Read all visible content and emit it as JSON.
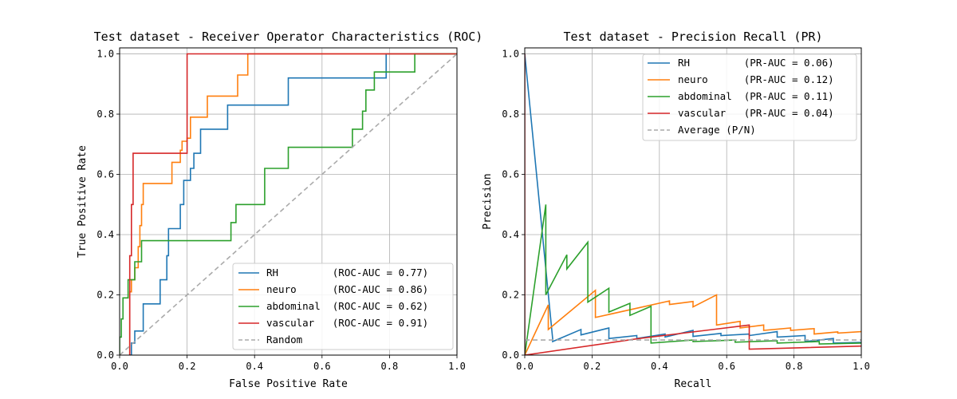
{
  "chart_data": [
    {
      "type": "line",
      "title": "Test dataset - Receiver Operator Characteristics (ROC)",
      "xlabel": "False Positive Rate",
      "ylabel": "True Positive Rate",
      "xlim": [
        0,
        1.0
      ],
      "ylim": [
        0,
        1.02
      ],
      "xticks": [
        "0.0",
        "0.2",
        "0.4",
        "0.6",
        "0.8",
        "1.0"
      ],
      "yticks": [
        "0.0",
        "0.2",
        "0.4",
        "0.6",
        "0.8",
        "1.0"
      ],
      "grid": true,
      "legend_position": "lower-right",
      "series": [
        {
          "name": "RH",
          "label": "RH         (ROC-AUC = 0.77)",
          "color": "#1f77b4",
          "x": [
            0.03,
            0.035,
            0.035,
            0.045,
            0.045,
            0.07,
            0.07,
            0.12,
            0.12,
            0.14,
            0.14,
            0.145,
            0.145,
            0.18,
            0.18,
            0.19,
            0.19,
            0.21,
            0.21,
            0.22,
            0.22,
            0.24,
            0.24,
            0.32,
            0.32,
            0.5,
            0.5,
            0.79,
            0.79,
            1.0
          ],
          "y": [
            0,
            0,
            0.04,
            0.04,
            0.08,
            0.08,
            0.17,
            0.17,
            0.25,
            0.25,
            0.33,
            0.33,
            0.42,
            0.42,
            0.5,
            0.5,
            0.58,
            0.58,
            0.62,
            0.62,
            0.67,
            0.67,
            0.75,
            0.75,
            0.83,
            0.83,
            0.92,
            0.92,
            1.0,
            1.0
          ]
        },
        {
          "name": "neuro",
          "label": "neuro      (ROC-AUC = 0.86)",
          "color": "#ff7f0e",
          "x": [
            0.03,
            0.03,
            0.035,
            0.035,
            0.045,
            0.045,
            0.055,
            0.055,
            0.06,
            0.06,
            0.065,
            0.065,
            0.07,
            0.07,
            0.155,
            0.155,
            0.18,
            0.18,
            0.185,
            0.185,
            0.2,
            0.2,
            0.21,
            0.21,
            0.22,
            0.22,
            0.26,
            0.26,
            0.32,
            0.32,
            0.35,
            0.35,
            0.37,
            0.37,
            0.38,
            0.38,
            1.0
          ],
          "y": [
            0,
            0.21,
            0.21,
            0.25,
            0.25,
            0.29,
            0.29,
            0.36,
            0.36,
            0.43,
            0.43,
            0.5,
            0.5,
            0.57,
            0.57,
            0.64,
            0.64,
            0.68,
            0.68,
            0.71,
            0.71,
            0.72,
            0.72,
            0.79,
            0.79,
            0.79,
            0.79,
            0.86,
            0.86,
            0.86,
            0.86,
            0.93,
            0.93,
            0.93,
            0.93,
            1.0,
            1.0
          ]
        },
        {
          "name": "abdominal",
          "label": "abdominal  (ROC-AUC = 0.62)",
          "color": "#2ca02c",
          "x": [
            0.0,
            0.0,
            0.005,
            0.005,
            0.01,
            0.01,
            0.025,
            0.025,
            0.045,
            0.045,
            0.055,
            0.055,
            0.065,
            0.065,
            0.07,
            0.07,
            0.33,
            0.33,
            0.345,
            0.345,
            0.42,
            0.42,
            0.43,
            0.43,
            0.5,
            0.5,
            0.69,
            0.69,
            0.72,
            0.72,
            0.73,
            0.73,
            0.74,
            0.74,
            0.755,
            0.755,
            0.8,
            0.8,
            0.875,
            0.875,
            1.0
          ],
          "y": [
            0,
            0.06,
            0.06,
            0.12,
            0.12,
            0.19,
            0.19,
            0.25,
            0.25,
            0.31,
            0.31,
            0.31,
            0.31,
            0.38,
            0.38,
            0.38,
            0.38,
            0.44,
            0.44,
            0.5,
            0.5,
            0.5,
            0.5,
            0.62,
            0.62,
            0.69,
            0.69,
            0.75,
            0.75,
            0.81,
            0.81,
            0.88,
            0.88,
            0.88,
            0.88,
            0.94,
            0.94,
            0.94,
            0.94,
            1.0,
            1.0
          ]
        },
        {
          "name": "vascular",
          "label": "vascular   (ROC-AUC = 0.91)",
          "color": "#d62728",
          "x": [
            0.03,
            0.03,
            0.035,
            0.035,
            0.04,
            0.04,
            0.2,
            0.2,
            1.0
          ],
          "y": [
            0,
            0.33,
            0.33,
            0.5,
            0.5,
            0.67,
            0.67,
            1.0,
            1.0
          ]
        },
        {
          "name": "Random",
          "label": "Random",
          "color": "#aaaaaa",
          "dashed": true,
          "x": [
            0,
            1
          ],
          "y": [
            0,
            1
          ]
        }
      ]
    },
    {
      "type": "line",
      "title": "Test dataset - Precision Recall (PR)",
      "xlabel": "Recall",
      "ylabel": "Precision",
      "xlim": [
        0,
        1.0
      ],
      "ylim": [
        0,
        1.02
      ],
      "xticks": [
        "0.0",
        "0.2",
        "0.4",
        "0.6",
        "0.8",
        "1.0"
      ],
      "yticks": [
        "0.0",
        "0.2",
        "0.4",
        "0.6",
        "0.8",
        "1.0"
      ],
      "grid": true,
      "legend_position": "top-right",
      "series": [
        {
          "name": "RH",
          "label": "RH         (PR-AUC = 0.06)",
          "color": "#1f77b4",
          "x": [
            0.0,
            0.083,
            0.083,
            0.167,
            0.167,
            0.25,
            0.25,
            0.333,
            0.333,
            0.417,
            0.417,
            0.5,
            0.5,
            0.583,
            0.583,
            0.667,
            0.667,
            0.75,
            0.75,
            0.833,
            0.833,
            0.917,
            0.917,
            1.0
          ],
          "y": [
            1.0,
            0.054,
            0.045,
            0.085,
            0.067,
            0.09,
            0.055,
            0.065,
            0.055,
            0.07,
            0.06,
            0.082,
            0.062,
            0.072,
            0.065,
            0.07,
            0.065,
            0.078,
            0.06,
            0.065,
            0.045,
            0.055,
            0.04,
            0.042
          ]
        },
        {
          "name": "neuro",
          "label": "neuro      (PR-AUC = 0.12)",
          "color": "#ff7f0e",
          "x": [
            0.0,
            0.07,
            0.07,
            0.21,
            0.21,
            0.43,
            0.43,
            0.5,
            0.5,
            0.57,
            0.57,
            0.64,
            0.64,
            0.71,
            0.71,
            0.79,
            0.79,
            0.86,
            0.86,
            0.93,
            0.93,
            1.0
          ],
          "y": [
            0.0,
            0.167,
            0.085,
            0.215,
            0.125,
            0.18,
            0.168,
            0.178,
            0.16,
            0.2,
            0.1,
            0.112,
            0.09,
            0.1,
            0.082,
            0.09,
            0.082,
            0.088,
            0.07,
            0.077,
            0.073,
            0.078
          ]
        },
        {
          "name": "abdominal",
          "label": "abdominal  (PR-AUC = 0.11)",
          "color": "#2ca02c",
          "x": [
            0.0,
            0.0625,
            0.0625,
            0.125,
            0.125,
            0.1875,
            0.1875,
            0.25,
            0.25,
            0.3125,
            0.3125,
            0.375,
            0.375,
            0.5,
            0.5,
            0.625,
            0.625,
            0.75,
            0.75,
            0.875,
            0.875,
            1.0
          ],
          "y": [
            0.0,
            0.5,
            0.2,
            0.333,
            0.286,
            0.375,
            0.176,
            0.222,
            0.143,
            0.172,
            0.132,
            0.162,
            0.04,
            0.05,
            0.045,
            0.05,
            0.043,
            0.048,
            0.04,
            0.045,
            0.037,
            0.04
          ]
        },
        {
          "name": "vascular",
          "label": "vascular   (PR-AUC = 0.04)",
          "color": "#d62728",
          "x": [
            0.0,
            0.0,
            0.333,
            0.333,
            0.667,
            0.667,
            1.0
          ],
          "y": [
            1.0,
            0.0,
            0.054,
            0.054,
            0.1,
            0.02,
            0.03
          ]
        },
        {
          "name": "Average (P/N)",
          "label": "Average (P/N)",
          "color": "#aaaaaa",
          "dashed": true,
          "x": [
            0,
            1
          ],
          "y": [
            0.05,
            0.05
          ]
        }
      ]
    }
  ]
}
